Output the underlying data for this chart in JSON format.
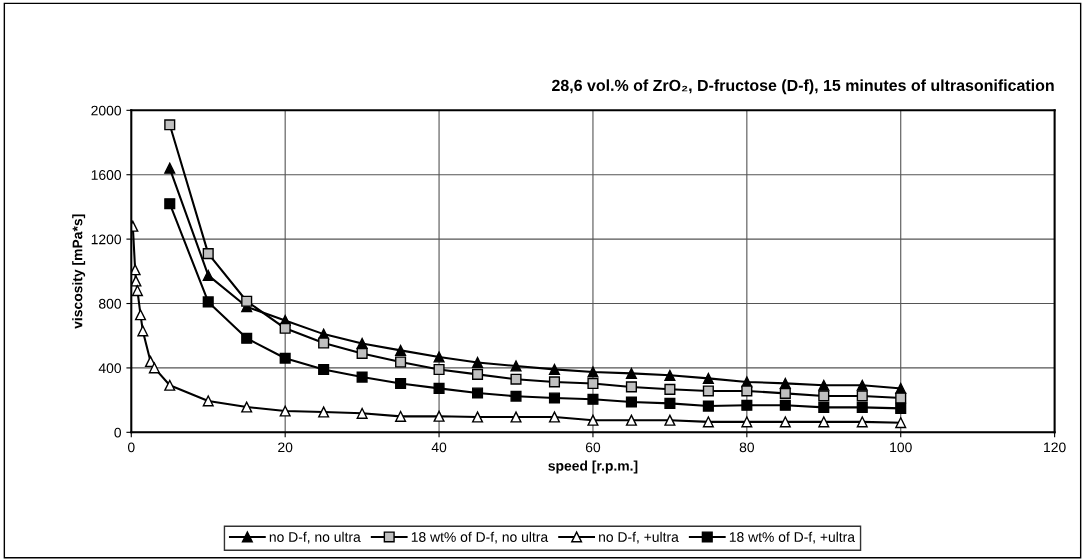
{
  "chart_data": {
    "type": "line",
    "title": "28,6 vol.% of ZrO₂, D-fructose (D-f), 15 minutes of ultrasonification",
    "xlabel": "speed [r.p.m.]",
    "ylabel": "viscosity [mPa*s]",
    "xlim": [
      0,
      120
    ],
    "xticks": [
      0,
      20,
      40,
      60,
      80,
      100,
      120
    ],
    "ylim": [
      0,
      2000
    ],
    "yticks": [
      0,
      400,
      800,
      1200,
      1600,
      2000
    ],
    "grid": true,
    "legend": "bottom",
    "series": [
      {
        "name": "no D-f, no ultra",
        "color": "#000000",
        "marker": "triangle",
        "x": [
          5,
          10,
          15,
          20,
          25,
          30,
          35,
          40,
          45,
          50,
          55,
          60,
          65,
          70,
          75,
          80,
          85,
          90,
          95,
          100
        ],
        "values": [
          1640,
          975,
          780,
          695,
          610,
          552,
          509,
          468,
          434,
          412,
          391,
          375,
          366,
          354,
          335,
          313,
          304,
          292,
          292,
          273
        ]
      },
      {
        "name": "18 wt% of D-f, no ultra",
        "color": "#c0c0c0",
        "marker": "square",
        "x": [
          5,
          10,
          15,
          20,
          25,
          30,
          35,
          40,
          45,
          50,
          55,
          60,
          65,
          70,
          75,
          80,
          85,
          90,
          95,
          100
        ],
        "values": [
          1910,
          1110,
          814,
          646,
          555,
          490,
          437,
          390,
          360,
          330,
          313,
          303,
          282,
          267,
          257,
          257,
          242,
          226,
          226,
          213
        ]
      },
      {
        "name": "no D-f, +ultra",
        "color": "#ffffff",
        "marker": "triangle",
        "x": [
          0.2,
          0.5,
          0.6,
          0.8,
          1.2,
          1.5,
          2.5,
          3,
          5,
          10,
          15,
          20,
          25,
          30,
          35,
          40,
          45,
          50,
          55,
          60,
          65,
          70,
          75,
          80,
          85,
          90,
          95,
          100
        ],
        "values": [
          1280,
          1010,
          940,
          880,
          730,
          630,
          440,
          400,
          292,
          195,
          157,
          132,
          126,
          118,
          99,
          100,
          95,
          95,
          95,
          75,
          75,
          75,
          65,
          65,
          65,
          65,
          65,
          60
        ]
      },
      {
        "name": "18 wt% of D-f, +ultra",
        "color": "#000000",
        "marker": "square",
        "x": [
          5,
          10,
          15,
          20,
          25,
          30,
          35,
          40,
          45,
          50,
          55,
          60,
          65,
          70,
          75,
          80,
          85,
          90,
          95,
          100
        ],
        "values": [
          1420,
          810,
          584,
          460,
          390,
          343,
          303,
          273,
          244,
          224,
          213,
          205,
          188,
          180,
          163,
          168,
          168,
          155,
          155,
          149
        ]
      }
    ]
  }
}
